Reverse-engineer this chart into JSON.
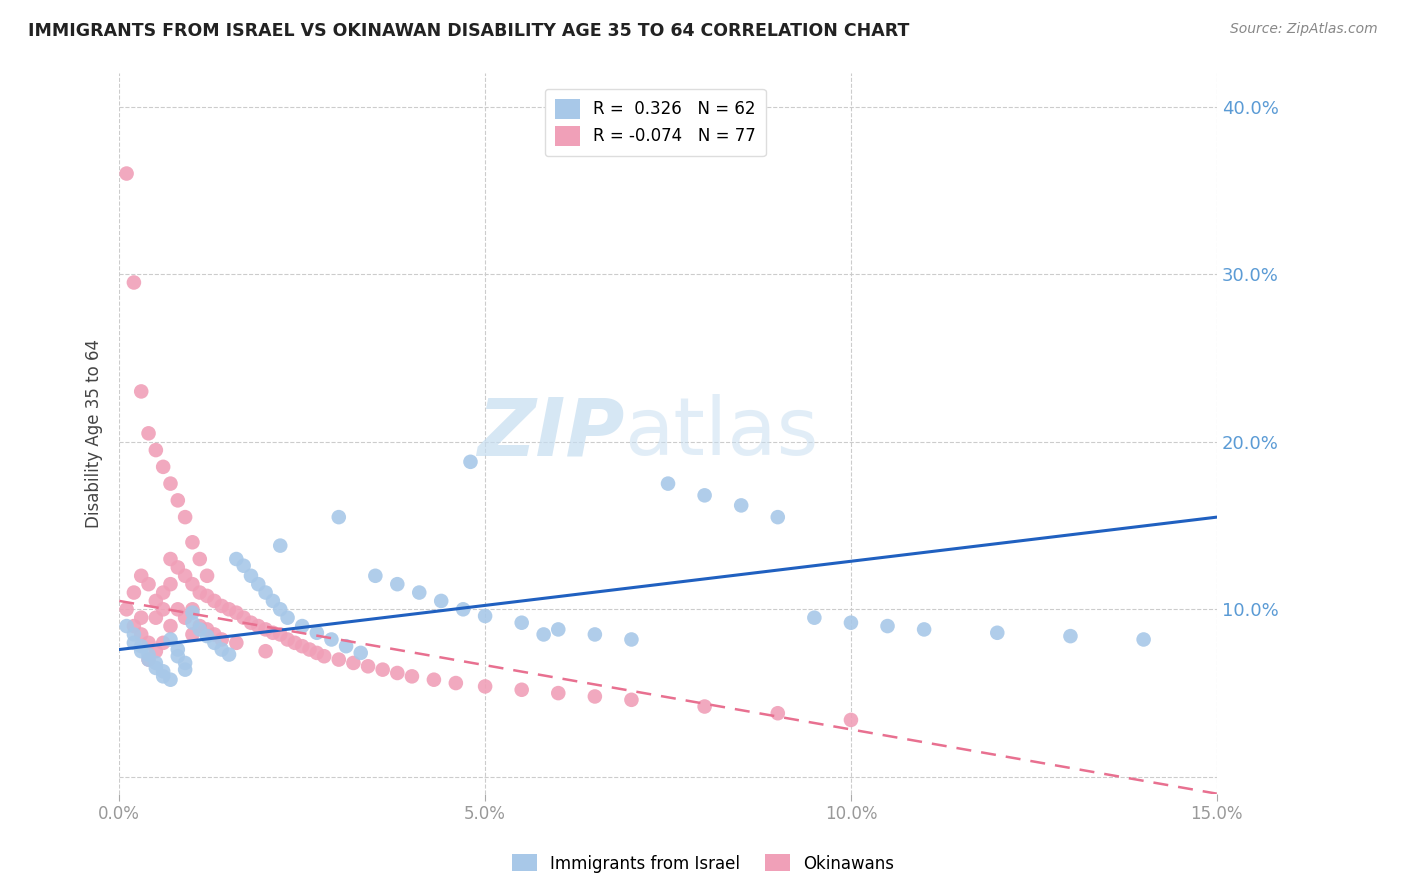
{
  "title": "IMMIGRANTS FROM ISRAEL VS OKINAWAN DISABILITY AGE 35 TO 64 CORRELATION CHART",
  "source": "Source: ZipAtlas.com",
  "ylabel": "Disability Age 35 to 64",
  "xlim": [
    0.0,
    0.15
  ],
  "ylim": [
    -0.01,
    0.42
  ],
  "yticks": [
    0.0,
    0.1,
    0.2,
    0.3,
    0.4
  ],
  "xticks": [
    0.0,
    0.05,
    0.1,
    0.15
  ],
  "xtick_labels": [
    "0.0%",
    "5.0%",
    "10.0%",
    "15.0%"
  ],
  "right_ytick_labels": [
    "",
    "10.0%",
    "20.0%",
    "30.0%",
    "40.0%"
  ],
  "legend_items": [
    {
      "label": "R =  0.326   N = 62",
      "color": "#a8c8e8"
    },
    {
      "label": "R = -0.074   N = 77",
      "color": "#f0a0b8"
    }
  ],
  "legend_labels_bottom": [
    "Immigrants from Israel",
    "Okinawans"
  ],
  "israel_color": "#a8c8e8",
  "okinawa_color": "#f0a0b8",
  "israel_line_color": "#2060c0",
  "okinawa_line_color": "#e87090",
  "background_color": "#ffffff",
  "watermark_zip": "ZIP",
  "watermark_atlas": "atlas",
  "israel_R": 0.326,
  "israel_N": 62,
  "okinawa_R": -0.074,
  "okinawa_N": 77,
  "israel_line_x": [
    0.0,
    0.15
  ],
  "israel_line_y": [
    0.076,
    0.155
  ],
  "okinawa_line_x": [
    0.0,
    0.15
  ],
  "okinawa_line_y": [
    0.105,
    -0.01
  ],
  "israel_points_x": [
    0.001,
    0.002,
    0.002,
    0.003,
    0.003,
    0.004,
    0.004,
    0.005,
    0.005,
    0.006,
    0.006,
    0.007,
    0.007,
    0.008,
    0.008,
    0.009,
    0.009,
    0.01,
    0.01,
    0.011,
    0.012,
    0.013,
    0.014,
    0.015,
    0.016,
    0.017,
    0.018,
    0.019,
    0.02,
    0.021,
    0.022,
    0.023,
    0.025,
    0.027,
    0.029,
    0.031,
    0.033,
    0.035,
    0.038,
    0.041,
    0.044,
    0.047,
    0.05,
    0.055,
    0.06,
    0.065,
    0.07,
    0.075,
    0.08,
    0.085,
    0.09,
    0.095,
    0.1,
    0.105,
    0.11,
    0.12,
    0.13,
    0.14,
    0.022,
    0.03,
    0.048,
    0.058
  ],
  "israel_points_y": [
    0.09,
    0.085,
    0.08,
    0.078,
    0.075,
    0.073,
    0.07,
    0.068,
    0.065,
    0.063,
    0.06,
    0.058,
    0.082,
    0.076,
    0.072,
    0.068,
    0.064,
    0.098,
    0.092,
    0.088,
    0.084,
    0.08,
    0.076,
    0.073,
    0.13,
    0.126,
    0.12,
    0.115,
    0.11,
    0.105,
    0.1,
    0.095,
    0.09,
    0.086,
    0.082,
    0.078,
    0.074,
    0.12,
    0.115,
    0.11,
    0.105,
    0.1,
    0.096,
    0.092,
    0.088,
    0.085,
    0.082,
    0.175,
    0.168,
    0.162,
    0.155,
    0.095,
    0.092,
    0.09,
    0.088,
    0.086,
    0.084,
    0.082,
    0.138,
    0.155,
    0.188,
    0.085
  ],
  "okinawa_points_x": [
    0.001,
    0.001,
    0.002,
    0.002,
    0.003,
    0.003,
    0.003,
    0.004,
    0.004,
    0.004,
    0.005,
    0.005,
    0.005,
    0.006,
    0.006,
    0.006,
    0.007,
    0.007,
    0.007,
    0.008,
    0.008,
    0.009,
    0.009,
    0.01,
    0.01,
    0.01,
    0.011,
    0.011,
    0.012,
    0.012,
    0.013,
    0.013,
    0.014,
    0.014,
    0.015,
    0.016,
    0.016,
    0.017,
    0.018,
    0.019,
    0.02,
    0.02,
    0.021,
    0.022,
    0.023,
    0.024,
    0.025,
    0.026,
    0.027,
    0.028,
    0.03,
    0.032,
    0.034,
    0.036,
    0.038,
    0.04,
    0.043,
    0.046,
    0.05,
    0.055,
    0.06,
    0.065,
    0.07,
    0.08,
    0.09,
    0.1,
    0.002,
    0.003,
    0.004,
    0.005,
    0.006,
    0.007,
    0.008,
    0.009,
    0.01,
    0.011,
    0.012
  ],
  "okinawa_points_y": [
    0.36,
    0.1,
    0.11,
    0.09,
    0.095,
    0.085,
    0.12,
    0.115,
    0.08,
    0.07,
    0.105,
    0.095,
    0.075,
    0.11,
    0.1,
    0.08,
    0.13,
    0.115,
    0.09,
    0.125,
    0.1,
    0.12,
    0.095,
    0.115,
    0.1,
    0.085,
    0.11,
    0.09,
    0.108,
    0.088,
    0.105,
    0.085,
    0.102,
    0.082,
    0.1,
    0.098,
    0.08,
    0.095,
    0.092,
    0.09,
    0.088,
    0.075,
    0.086,
    0.085,
    0.082,
    0.08,
    0.078,
    0.076,
    0.074,
    0.072,
    0.07,
    0.068,
    0.066,
    0.064,
    0.062,
    0.06,
    0.058,
    0.056,
    0.054,
    0.052,
    0.05,
    0.048,
    0.046,
    0.042,
    0.038,
    0.034,
    0.295,
    0.23,
    0.205,
    0.195,
    0.185,
    0.175,
    0.165,
    0.155,
    0.14,
    0.13,
    0.12
  ]
}
